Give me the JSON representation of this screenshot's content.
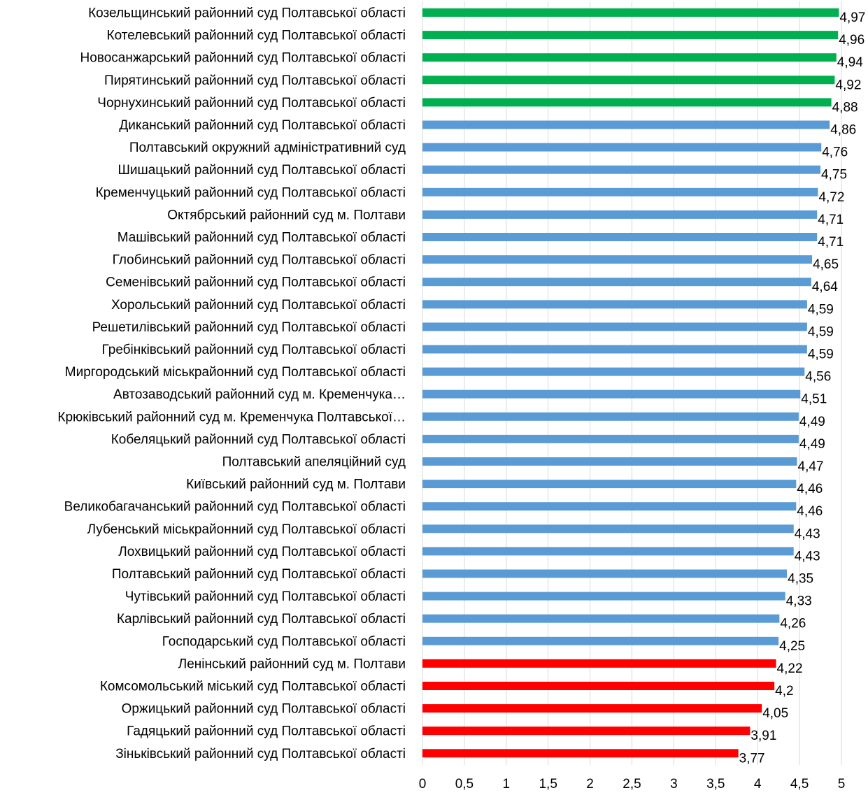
{
  "chart_data": {
    "type": "bar",
    "orientation": "horizontal",
    "title": "",
    "xlabel": "",
    "ylabel": "",
    "xlim": [
      0,
      5
    ],
    "ticks": [
      "0",
      "0,5",
      "1",
      "1,5",
      "2",
      "2,5",
      "3",
      "3,5",
      "4",
      "4,5",
      "5"
    ],
    "grid": true,
    "colors": {
      "high": "#00b050",
      "mid": "#5b9bd5",
      "low": "#ff0000"
    },
    "bars": [
      {
        "label": "Козельщинський районний суд Полтавської області",
        "value": 4.97,
        "value_label": "4,97",
        "color": "#00b050"
      },
      {
        "label": "Котелевський районний суд Полтавської області",
        "value": 4.96,
        "value_label": "4,96",
        "color": "#00b050"
      },
      {
        "label": "Новосанжарський районний суд Полтавської області",
        "value": 4.94,
        "value_label": "4,94",
        "color": "#00b050"
      },
      {
        "label": "Пирятинський районний суд Полтавської області",
        "value": 4.92,
        "value_label": "4,92",
        "color": "#00b050"
      },
      {
        "label": "Чорнухинський районний суд Полтавської області",
        "value": 4.88,
        "value_label": "4,88",
        "color": "#00b050"
      },
      {
        "label": "Диканський районний суд Полтавської області",
        "value": 4.86,
        "value_label": "4,86",
        "color": "#5b9bd5"
      },
      {
        "label": "Полтавський окружний адміністративний суд",
        "value": 4.76,
        "value_label": "4,76",
        "color": "#5b9bd5"
      },
      {
        "label": "Шишацький районний суд Полтавської області",
        "value": 4.75,
        "value_label": "4,75",
        "color": "#5b9bd5"
      },
      {
        "label": "Кременчуцький районний суд Полтавської області",
        "value": 4.72,
        "value_label": "4,72",
        "color": "#5b9bd5"
      },
      {
        "label": "Октябрський районний суд  м. Полтави",
        "value": 4.71,
        "value_label": "4,71",
        "color": "#5b9bd5"
      },
      {
        "label": "Машівський районний суд Полтавської області",
        "value": 4.71,
        "value_label": "4,71",
        "color": "#5b9bd5"
      },
      {
        "label": "Глобинський районний суд Полтавської області",
        "value": 4.65,
        "value_label": "4,65",
        "color": "#5b9bd5"
      },
      {
        "label": "Семенівський районний суд Полтавської області",
        "value": 4.64,
        "value_label": "4,64",
        "color": "#5b9bd5"
      },
      {
        "label": "Хорольський районний суд Полтавської області",
        "value": 4.59,
        "value_label": "4,59",
        "color": "#5b9bd5"
      },
      {
        "label": "Решетилівський районний суд Полтавської області",
        "value": 4.59,
        "value_label": "4,59",
        "color": "#5b9bd5"
      },
      {
        "label": "Гребінківський районний суд Полтавської області",
        "value": 4.59,
        "value_label": "4,59",
        "color": "#5b9bd5"
      },
      {
        "label": "Миргородський міськрайонний суд Полтавської області",
        "value": 4.56,
        "value_label": "4,56",
        "color": "#5b9bd5"
      },
      {
        "label": "Автозаводський районний суд м. Кременчука…",
        "value": 4.51,
        "value_label": "4,51",
        "color": "#5b9bd5"
      },
      {
        "label": "Крюківський районний суд  м. Кременчука Полтавської…",
        "value": 4.49,
        "value_label": "4,49",
        "color": "#5b9bd5"
      },
      {
        "label": "Кобеляцький районний суд Полтавської області",
        "value": 4.49,
        "value_label": "4,49",
        "color": "#5b9bd5"
      },
      {
        "label": "Полтавський апеляційний  суд",
        "value": 4.47,
        "value_label": "4,47",
        "color": "#5b9bd5"
      },
      {
        "label": "Київський районний суд м. Полтави",
        "value": 4.46,
        "value_label": "4,46",
        "color": "#5b9bd5"
      },
      {
        "label": "Великобагачанський районний суд Полтавської області",
        "value": 4.46,
        "value_label": "4,46",
        "color": "#5b9bd5"
      },
      {
        "label": "Лубенський міськрайонний суд Полтавської області",
        "value": 4.43,
        "value_label": "4,43",
        "color": "#5b9bd5"
      },
      {
        "label": "Лохвицький районний суд Полтавської області",
        "value": 4.43,
        "value_label": "4,43",
        "color": "#5b9bd5"
      },
      {
        "label": "Полтавський районний суд Полтавської області",
        "value": 4.35,
        "value_label": "4,35",
        "color": "#5b9bd5"
      },
      {
        "label": "Чутівський районний суд Полтавської області",
        "value": 4.33,
        "value_label": "4,33",
        "color": "#5b9bd5"
      },
      {
        "label": "Карлівський районний суд Полтавської області",
        "value": 4.26,
        "value_label": "4,26",
        "color": "#5b9bd5"
      },
      {
        "label": "Господарський суд Полтавської області",
        "value": 4.25,
        "value_label": "4,25",
        "color": "#5b9bd5"
      },
      {
        "label": "Ленінський районний суд м. Полтави",
        "value": 4.22,
        "value_label": "4,22",
        "color": "#ff0000"
      },
      {
        "label": "Комсомольський міський суд Полтавської області",
        "value": 4.2,
        "value_label": "4,2",
        "color": "#ff0000"
      },
      {
        "label": "Оржицький районний суд Полтавської області",
        "value": 4.05,
        "value_label": "4,05",
        "color": "#ff0000"
      },
      {
        "label": "Гадяцький районний суд Полтавської області",
        "value": 3.91,
        "value_label": "3,91",
        "color": "#ff0000"
      },
      {
        "label": "Зіньківський районний суд Полтавської області",
        "value": 3.77,
        "value_label": "3,77",
        "color": "#ff0000"
      }
    ]
  }
}
